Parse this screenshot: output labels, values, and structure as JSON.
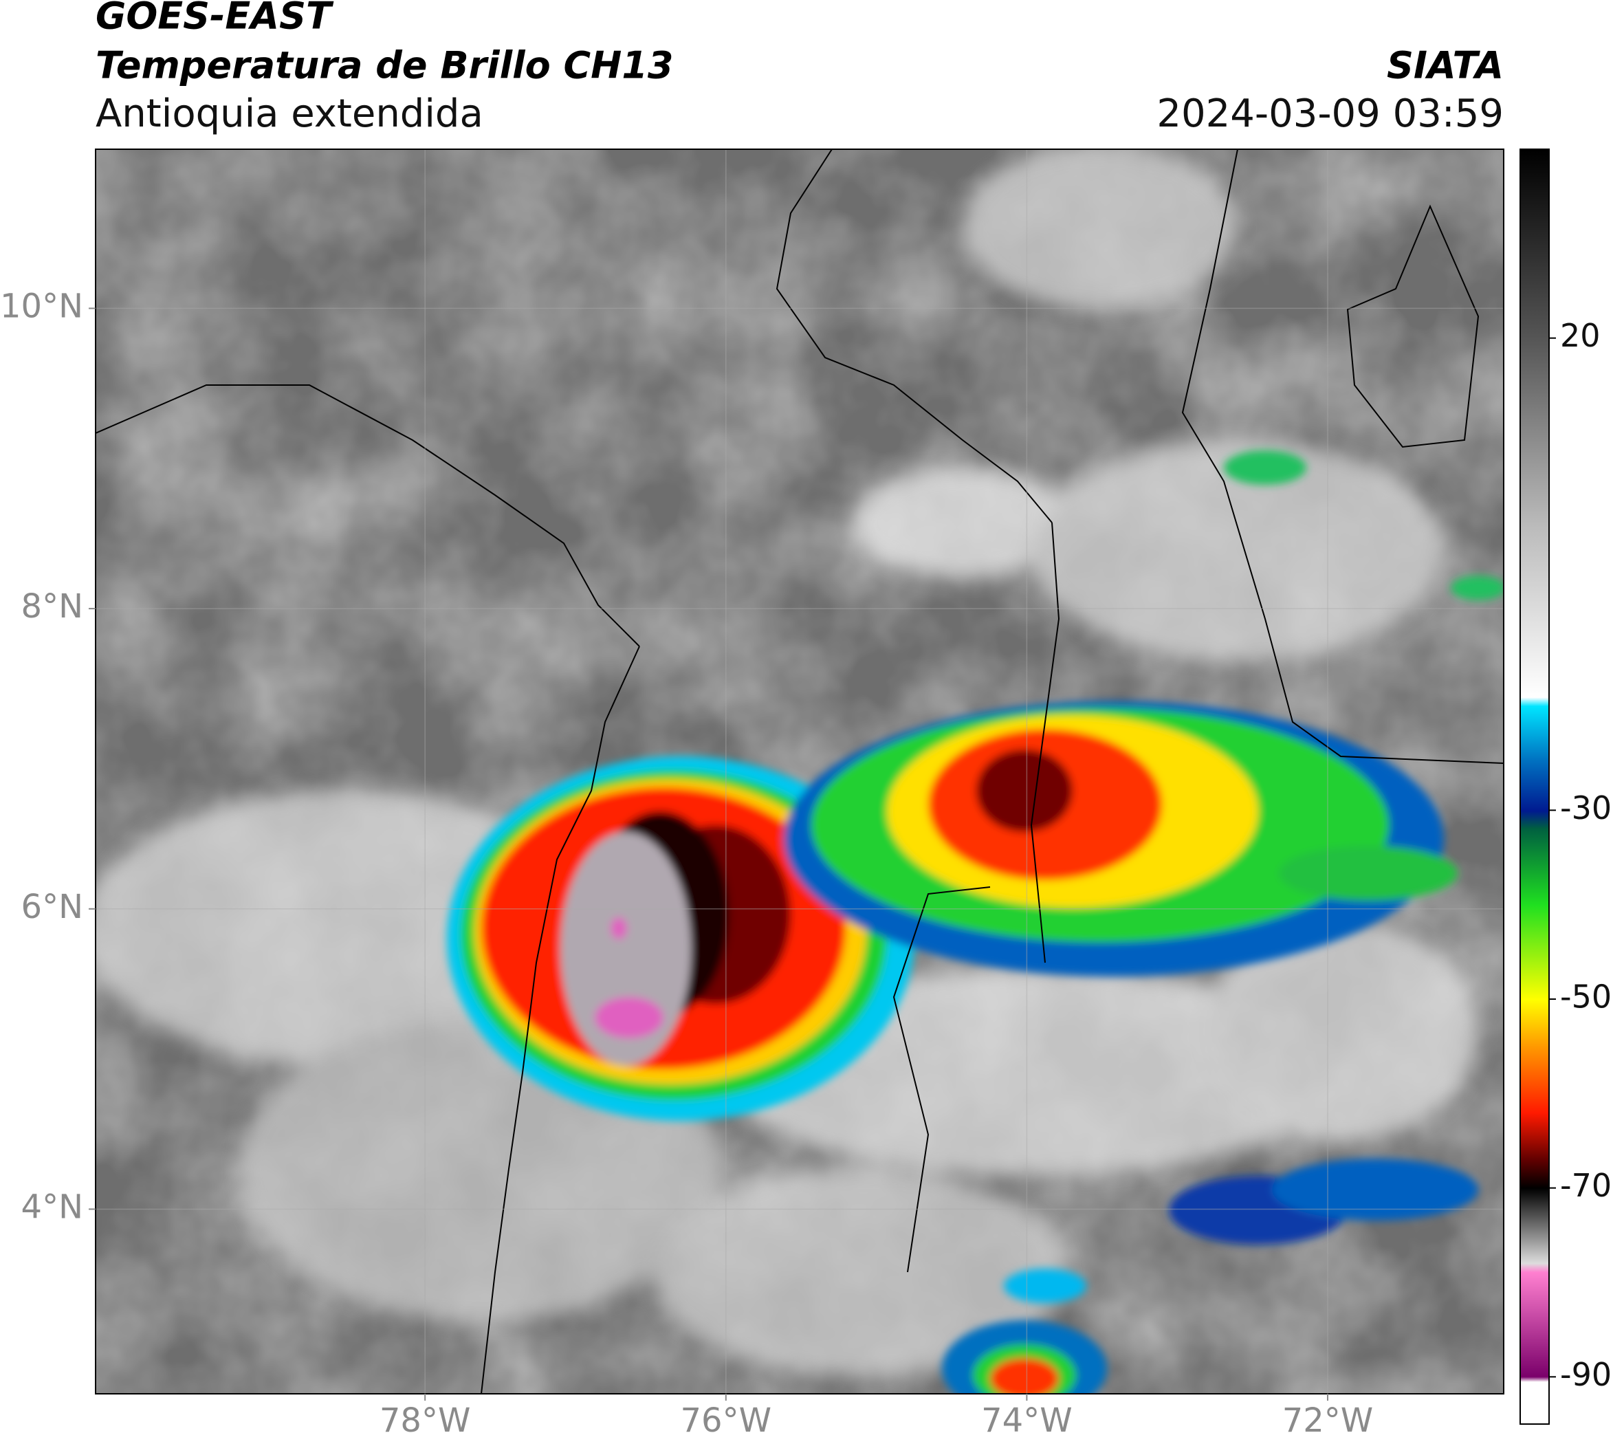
{
  "header": {
    "title": "GOES-EAST",
    "subtitle": "Temperatura de Brillo CH13",
    "region": "Antioquia extendida",
    "source": "SIATA",
    "datetime": "2024-03-09 03:59"
  },
  "map": {
    "xlim": [
      -80.19,
      -70.83
    ],
    "ylim": [
      2.77,
      11.06
    ],
    "xticks": [
      {
        "value": -78,
        "label": "78°W"
      },
      {
        "value": -76,
        "label": "76°W"
      },
      {
        "value": -74,
        "label": "74°W"
      },
      {
        "value": -72,
        "label": "72°W"
      }
    ],
    "yticks": [
      {
        "value": 10,
        "label": "10°N"
      },
      {
        "value": 8,
        "label": "8°N"
      },
      {
        "value": 6,
        "label": "6°N"
      },
      {
        "value": 4,
        "label": "4°N"
      }
    ],
    "grid": true
  },
  "colorbar": {
    "clim": [
      -95,
      40
    ],
    "ticks": [
      20,
      -30,
      -50,
      -70,
      -90
    ]
  }
}
